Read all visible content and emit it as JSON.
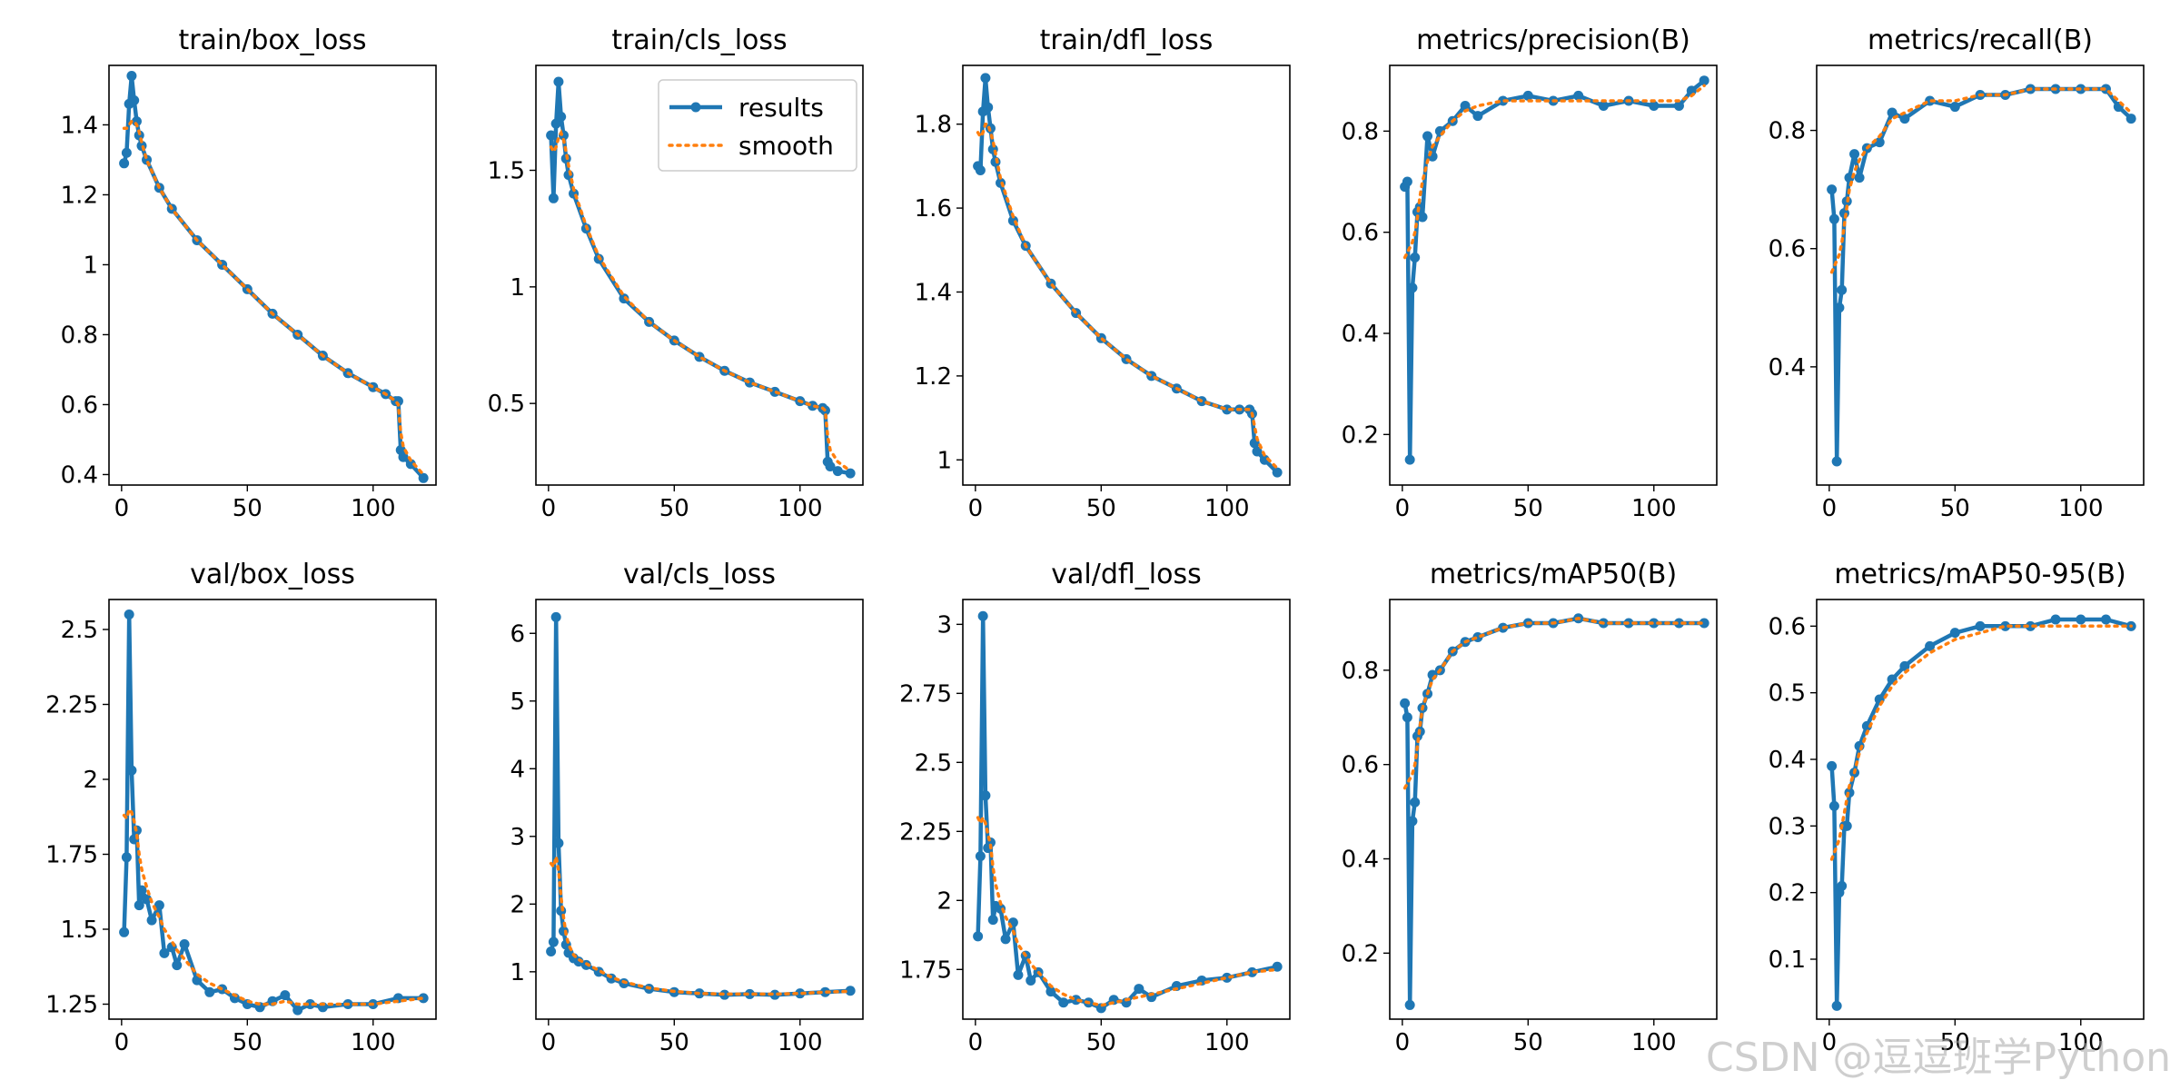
{
  "watermark": "CSDN @逗逗班学Python",
  "colors": {
    "results": "#1f77b4",
    "smooth": "#ff7f0e"
  },
  "legend": {
    "results": "results",
    "smooth": "smooth",
    "placement": "top-right",
    "subplot_index": 1
  },
  "chart_data": [
    {
      "type": "line",
      "title": "train/box_loss",
      "xlim": [
        -5,
        125
      ],
      "ylim": [
        0.37,
        1.57
      ],
      "xticks": [
        0,
        50,
        100
      ],
      "yticks": [
        0.4,
        0.6,
        0.8,
        1.0,
        1.2,
        1.4
      ],
      "grid": false,
      "x": [
        1,
        2,
        3,
        4,
        5,
        6,
        7,
        8,
        10,
        15,
        20,
        30,
        40,
        50,
        60,
        70,
        80,
        90,
        100,
        105,
        109,
        110,
        111,
        112,
        115,
        120
      ],
      "series": [
        {
          "name": "results",
          "values": [
            1.29,
            1.32,
            1.46,
            1.54,
            1.47,
            1.41,
            1.37,
            1.34,
            1.3,
            1.22,
            1.16,
            1.07,
            1.0,
            0.93,
            0.86,
            0.8,
            0.74,
            0.69,
            0.65,
            0.63,
            0.61,
            0.61,
            0.47,
            0.45,
            0.43,
            0.39
          ]
        },
        {
          "name": "smooth",
          "values": [
            1.39,
            1.39,
            1.4,
            1.41,
            1.41,
            1.4,
            1.38,
            1.35,
            1.3,
            1.22,
            1.16,
            1.07,
            1.0,
            0.93,
            0.86,
            0.8,
            0.74,
            0.69,
            0.65,
            0.63,
            0.61,
            0.6,
            0.52,
            0.48,
            0.44,
            0.4
          ]
        }
      ]
    },
    {
      "type": "line",
      "title": "train/cls_loss",
      "xlim": [
        -5,
        125
      ],
      "ylim": [
        0.15,
        1.95
      ],
      "xticks": [
        0,
        50,
        100
      ],
      "yticks": [
        0.5,
        1.0,
        1.5
      ],
      "grid": false,
      "x": [
        1,
        2,
        3,
        4,
        5,
        6,
        7,
        8,
        10,
        15,
        20,
        30,
        40,
        50,
        60,
        70,
        80,
        90,
        100,
        105,
        109,
        110,
        111,
        112,
        115,
        120
      ],
      "series": [
        {
          "name": "results",
          "values": [
            1.65,
            1.38,
            1.7,
            1.88,
            1.73,
            1.65,
            1.55,
            1.48,
            1.4,
            1.25,
            1.12,
            0.95,
            0.85,
            0.77,
            0.7,
            0.64,
            0.59,
            0.55,
            0.51,
            0.49,
            0.48,
            0.47,
            0.25,
            0.23,
            0.21,
            0.2
          ]
        },
        {
          "name": "smooth",
          "values": [
            1.6,
            1.58,
            1.6,
            1.64,
            1.66,
            1.63,
            1.58,
            1.52,
            1.42,
            1.26,
            1.13,
            0.96,
            0.85,
            0.77,
            0.7,
            0.64,
            0.59,
            0.55,
            0.51,
            0.49,
            0.48,
            0.47,
            0.36,
            0.3,
            0.25,
            0.21
          ]
        }
      ]
    },
    {
      "type": "line",
      "title": "train/dfl_loss",
      "xlim": [
        -5,
        125
      ],
      "ylim": [
        0.94,
        1.94
      ],
      "xticks": [
        0,
        50,
        100
      ],
      "yticks": [
        1.0,
        1.2,
        1.4,
        1.6,
        1.8
      ],
      "grid": false,
      "x": [
        1,
        2,
        3,
        4,
        5,
        6,
        7,
        8,
        10,
        15,
        20,
        30,
        40,
        50,
        60,
        70,
        80,
        90,
        100,
        105,
        109,
        110,
        111,
        112,
        115,
        120
      ],
      "series": [
        {
          "name": "results",
          "values": [
            1.7,
            1.69,
            1.83,
            1.91,
            1.84,
            1.79,
            1.74,
            1.71,
            1.66,
            1.57,
            1.51,
            1.42,
            1.35,
            1.29,
            1.24,
            1.2,
            1.17,
            1.14,
            1.12,
            1.12,
            1.12,
            1.11,
            1.04,
            1.02,
            1.0,
            0.97
          ]
        },
        {
          "name": "smooth",
          "values": [
            1.78,
            1.77,
            1.78,
            1.8,
            1.8,
            1.78,
            1.76,
            1.73,
            1.67,
            1.58,
            1.51,
            1.42,
            1.35,
            1.29,
            1.24,
            1.2,
            1.17,
            1.14,
            1.12,
            1.12,
            1.12,
            1.11,
            1.08,
            1.05,
            1.01,
            0.98
          ]
        }
      ]
    },
    {
      "type": "line",
      "title": "metrics/precision(B)",
      "xlim": [
        -5,
        125
      ],
      "ylim": [
        0.1,
        0.93
      ],
      "xticks": [
        0,
        50,
        100
      ],
      "yticks": [
        0.2,
        0.4,
        0.6,
        0.8
      ],
      "grid": false,
      "x": [
        1,
        2,
        3,
        4,
        5,
        6,
        7,
        8,
        10,
        12,
        15,
        20,
        25,
        30,
        40,
        50,
        60,
        70,
        80,
        90,
        100,
        110,
        115,
        120
      ],
      "series": [
        {
          "name": "results",
          "values": [
            0.69,
            0.7,
            0.15,
            0.49,
            0.55,
            0.64,
            0.65,
            0.63,
            0.79,
            0.75,
            0.8,
            0.82,
            0.85,
            0.83,
            0.86,
            0.87,
            0.86,
            0.87,
            0.85,
            0.86,
            0.85,
            0.85,
            0.88,
            0.9
          ]
        },
        {
          "name": "smooth",
          "values": [
            0.55,
            0.56,
            0.57,
            0.58,
            0.6,
            0.63,
            0.67,
            0.7,
            0.74,
            0.77,
            0.79,
            0.82,
            0.84,
            0.85,
            0.86,
            0.86,
            0.86,
            0.86,
            0.86,
            0.86,
            0.86,
            0.86,
            0.87,
            0.89
          ]
        }
      ]
    },
    {
      "type": "line",
      "title": "metrics/recall(B)",
      "xlim": [
        -5,
        125
      ],
      "ylim": [
        0.2,
        0.91
      ],
      "xticks": [
        0,
        50,
        100
      ],
      "yticks": [
        0.4,
        0.6,
        0.8
      ],
      "grid": false,
      "x": [
        1,
        2,
        3,
        4,
        5,
        6,
        7,
        8,
        10,
        12,
        15,
        20,
        25,
        30,
        40,
        50,
        60,
        70,
        80,
        90,
        100,
        110,
        115,
        120
      ],
      "series": [
        {
          "name": "results",
          "values": [
            0.7,
            0.65,
            0.24,
            0.5,
            0.53,
            0.66,
            0.68,
            0.72,
            0.76,
            0.72,
            0.77,
            0.78,
            0.83,
            0.82,
            0.85,
            0.84,
            0.86,
            0.86,
            0.87,
            0.87,
            0.87,
            0.87,
            0.84,
            0.82
          ]
        },
        {
          "name": "smooth",
          "values": [
            0.56,
            0.57,
            0.58,
            0.59,
            0.61,
            0.64,
            0.67,
            0.7,
            0.73,
            0.75,
            0.77,
            0.79,
            0.82,
            0.83,
            0.85,
            0.85,
            0.86,
            0.86,
            0.87,
            0.87,
            0.87,
            0.87,
            0.85,
            0.83
          ]
        }
      ]
    },
    {
      "type": "line",
      "title": "val/box_loss",
      "xlim": [
        -5,
        125
      ],
      "ylim": [
        1.2,
        2.6
      ],
      "xticks": [
        0,
        50,
        100
      ],
      "yticks": [
        1.25,
        1.5,
        1.75,
        2.0,
        2.25,
        2.5
      ],
      "grid": false,
      "x": [
        1,
        2,
        3,
        4,
        5,
        6,
        7,
        8,
        10,
        12,
        15,
        17,
        20,
        22,
        25,
        30,
        35,
        40,
        45,
        50,
        55,
        60,
        65,
        70,
        75,
        80,
        90,
        100,
        110,
        120
      ],
      "series": [
        {
          "name": "results",
          "values": [
            1.49,
            1.74,
            2.55,
            2.03,
            1.8,
            1.83,
            1.58,
            1.63,
            1.6,
            1.53,
            1.58,
            1.42,
            1.44,
            1.38,
            1.45,
            1.33,
            1.29,
            1.3,
            1.27,
            1.25,
            1.24,
            1.26,
            1.28,
            1.23,
            1.25,
            1.24,
            1.25,
            1.25,
            1.27,
            1.27
          ]
        },
        {
          "name": "smooth",
          "values": [
            1.88,
            1.87,
            1.9,
            1.89,
            1.86,
            1.82,
            1.75,
            1.7,
            1.64,
            1.59,
            1.54,
            1.5,
            1.46,
            1.43,
            1.4,
            1.35,
            1.32,
            1.3,
            1.28,
            1.26,
            1.25,
            1.25,
            1.26,
            1.25,
            1.25,
            1.25,
            1.25,
            1.25,
            1.26,
            1.27
          ]
        }
      ]
    },
    {
      "type": "line",
      "title": "val/cls_loss",
      "xlim": [
        -5,
        125
      ],
      "ylim": [
        0.3,
        6.5
      ],
      "xticks": [
        0,
        50,
        100
      ],
      "yticks": [
        1,
        2,
        3,
        4,
        5,
        6
      ],
      "grid": false,
      "x": [
        1,
        2,
        3,
        4,
        5,
        6,
        7,
        8,
        10,
        12,
        15,
        20,
        25,
        30,
        40,
        50,
        60,
        70,
        80,
        90,
        100,
        110,
        120
      ],
      "series": [
        {
          "name": "results",
          "values": [
            1.3,
            1.44,
            6.24,
            2.9,
            1.9,
            1.6,
            1.4,
            1.28,
            1.2,
            1.15,
            1.1,
            1.0,
            0.9,
            0.83,
            0.75,
            0.7,
            0.68,
            0.66,
            0.67,
            0.66,
            0.68,
            0.7,
            0.72
          ]
        },
        {
          "name": "smooth",
          "values": [
            2.6,
            2.55,
            2.7,
            2.5,
            2.1,
            1.8,
            1.55,
            1.4,
            1.25,
            1.18,
            1.12,
            1.02,
            0.92,
            0.85,
            0.76,
            0.71,
            0.68,
            0.67,
            0.67,
            0.67,
            0.68,
            0.7,
            0.71
          ]
        }
      ]
    },
    {
      "type": "line",
      "title": "val/dfl_loss",
      "xlim": [
        -5,
        125
      ],
      "ylim": [
        1.57,
        3.09
      ],
      "xticks": [
        0,
        50,
        100
      ],
      "yticks": [
        1.75,
        2.0,
        2.25,
        2.5,
        2.75,
        3.0
      ],
      "grid": false,
      "x": [
        1,
        2,
        3,
        4,
        5,
        6,
        7,
        8,
        10,
        12,
        15,
        17,
        20,
        22,
        25,
        30,
        35,
        40,
        45,
        50,
        55,
        60,
        65,
        70,
        80,
        90,
        100,
        110,
        120
      ],
      "series": [
        {
          "name": "results",
          "values": [
            1.87,
            2.16,
            3.03,
            2.38,
            2.19,
            2.21,
            1.93,
            1.98,
            1.97,
            1.86,
            1.92,
            1.73,
            1.8,
            1.71,
            1.74,
            1.67,
            1.63,
            1.64,
            1.63,
            1.61,
            1.64,
            1.63,
            1.68,
            1.65,
            1.69,
            1.71,
            1.72,
            1.74,
            1.76
          ]
        },
        {
          "name": "smooth",
          "values": [
            2.3,
            2.28,
            2.3,
            2.28,
            2.24,
            2.2,
            2.12,
            2.06,
            1.99,
            1.94,
            1.89,
            1.84,
            1.8,
            1.77,
            1.74,
            1.69,
            1.66,
            1.64,
            1.63,
            1.62,
            1.63,
            1.64,
            1.65,
            1.66,
            1.68,
            1.7,
            1.72,
            1.74,
            1.75
          ]
        }
      ]
    },
    {
      "type": "line",
      "title": "metrics/mAP50(B)",
      "xlim": [
        -5,
        125
      ],
      "ylim": [
        0.06,
        0.95
      ],
      "xticks": [
        0,
        50,
        100
      ],
      "yticks": [
        0.2,
        0.4,
        0.6,
        0.8
      ],
      "grid": false,
      "x": [
        1,
        2,
        3,
        4,
        5,
        6,
        7,
        8,
        10,
        12,
        15,
        20,
        25,
        30,
        40,
        50,
        60,
        70,
        80,
        90,
        100,
        110,
        120
      ],
      "series": [
        {
          "name": "results",
          "values": [
            0.73,
            0.7,
            0.09,
            0.48,
            0.52,
            0.66,
            0.67,
            0.72,
            0.75,
            0.79,
            0.8,
            0.84,
            0.86,
            0.87,
            0.89,
            0.9,
            0.9,
            0.91,
            0.9,
            0.9,
            0.9,
            0.9,
            0.9
          ]
        },
        {
          "name": "smooth",
          "values": [
            0.55,
            0.56,
            0.57,
            0.58,
            0.6,
            0.64,
            0.68,
            0.72,
            0.75,
            0.78,
            0.8,
            0.84,
            0.86,
            0.87,
            0.89,
            0.9,
            0.9,
            0.91,
            0.9,
            0.9,
            0.9,
            0.9,
            0.9
          ]
        }
      ]
    },
    {
      "type": "line",
      "title": "metrics/mAP50-95(B)",
      "xlim": [
        -5,
        125
      ],
      "ylim": [
        0.01,
        0.64
      ],
      "xticks": [
        0,
        50,
        100
      ],
      "yticks": [
        0.1,
        0.2,
        0.3,
        0.4,
        0.5,
        0.6
      ],
      "grid": false,
      "x": [
        1,
        2,
        3,
        4,
        5,
        6,
        7,
        8,
        10,
        12,
        15,
        20,
        25,
        30,
        40,
        50,
        60,
        70,
        80,
        90,
        100,
        110,
        120
      ],
      "series": [
        {
          "name": "results",
          "values": [
            0.39,
            0.33,
            0.03,
            0.2,
            0.21,
            0.3,
            0.3,
            0.35,
            0.38,
            0.42,
            0.45,
            0.49,
            0.52,
            0.54,
            0.57,
            0.59,
            0.6,
            0.6,
            0.6,
            0.61,
            0.61,
            0.61,
            0.6
          ]
        },
        {
          "name": "smooth",
          "values": [
            0.25,
            0.26,
            0.27,
            0.28,
            0.3,
            0.32,
            0.34,
            0.36,
            0.38,
            0.41,
            0.44,
            0.48,
            0.51,
            0.53,
            0.56,
            0.58,
            0.59,
            0.6,
            0.6,
            0.6,
            0.6,
            0.6,
            0.6
          ]
        }
      ]
    }
  ]
}
